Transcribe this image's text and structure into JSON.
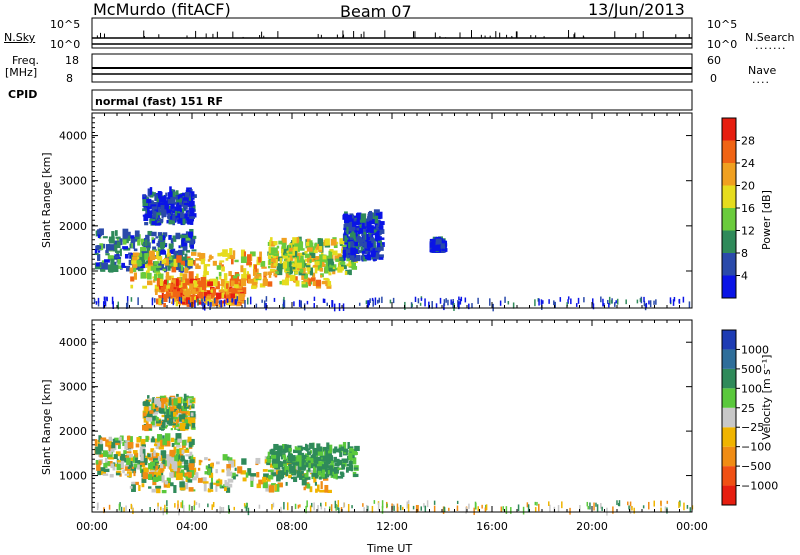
{
  "header": {
    "station": "McMurdo (fitACF)",
    "beam": "Beam 07",
    "date": "13/Jun/2013"
  },
  "strips": {
    "nsky": {
      "label": "N.Sky",
      "tick_top": "10^5",
      "tick_bottom": "10^0"
    },
    "nsearch": {
      "label": "N.Search",
      "tick_top": "10^5",
      "tick_bottom": "10^0"
    },
    "freq": {
      "label_line1": "Freq.",
      "label_line2": "[MHz]",
      "tick_top": "18",
      "tick_bottom": "8"
    },
    "nave": {
      "label": "Nave",
      "tick_top": "60",
      "tick_bottom": "0"
    },
    "cpid": {
      "label": "CPID",
      "text": "normal (fast) 151 RF"
    }
  },
  "chart_data": [
    {
      "type": "heatmap",
      "name": "power",
      "ylabel": "Slant Range [km]",
      "xlabel": "",
      "ylim": [
        180,
        4500
      ],
      "yticks": [
        "1000",
        "2000",
        "3000",
        "4000"
      ],
      "xlim_hours": [
        0,
        24
      ],
      "colorbar": {
        "label": "Power [dB]",
        "ticks": [
          "4",
          "8",
          "12",
          "16",
          "20",
          "24",
          "28"
        ],
        "range": [
          0,
          30
        ],
        "colors": [
          "#0a14e6",
          "#2a4aaa",
          "#2f8a5a",
          "#6acb3c",
          "#e6dc1e",
          "#f0a020",
          "#f06414",
          "#e61e10"
        ]
      },
      "regions": [
        {
          "t0": 0.1,
          "t1": 4.0,
          "r0": 950,
          "r1": 1800,
          "level": 10
        },
        {
          "t0": 1.5,
          "t1": 9.5,
          "r0": 600,
          "r1": 1350,
          "level": 22
        },
        {
          "t0": 2.5,
          "t1": 6.0,
          "r0": 200,
          "r1": 700,
          "level": 26
        },
        {
          "t0": 2.0,
          "t1": 4.0,
          "r0": 2000,
          "r1": 2700,
          "level": 5
        },
        {
          "t0": 7.0,
          "t1": 10.5,
          "r0": 900,
          "r1": 1600,
          "level": 16
        },
        {
          "t0": 10.0,
          "t1": 11.5,
          "r0": 1200,
          "r1": 2200,
          "level": 5
        },
        {
          "t0": 13.5,
          "t1": 14.0,
          "r0": 1400,
          "r1": 1600,
          "level": 5
        }
      ]
    },
    {
      "type": "heatmap",
      "name": "velocity",
      "ylabel": "Slant Range [km]",
      "xlabel": "Time UT",
      "ylim": [
        180,
        4500
      ],
      "yticks": [
        "1000",
        "2000",
        "3000",
        "4000"
      ],
      "xticks": [
        "00:00",
        "04:00",
        "08:00",
        "12:00",
        "16:00",
        "20:00",
        "00:00"
      ],
      "colorbar": {
        "label": "Velocity [m s⁻¹]",
        "ticks": [
          "1000",
          "500",
          "100",
          "25",
          "−25",
          "−100",
          "−500",
          "−1000"
        ],
        "colors": [
          "#1e3cb4",
          "#2f6e9a",
          "#2f8a5a",
          "#5ac83c",
          "#c8c8c8",
          "#f0b400",
          "#f08c14",
          "#f05014",
          "#e61e10"
        ]
      },
      "regions": [
        {
          "t0": 0.1,
          "t1": 4.0,
          "r0": 950,
          "r1": 1800,
          "level": "mixed"
        },
        {
          "t0": 1.5,
          "t1": 9.5,
          "r0": 600,
          "r1": 1350,
          "level": "mixed"
        },
        {
          "t0": 2.0,
          "t1": 4.0,
          "r0": 2000,
          "r1": 2700,
          "level": "mixed"
        },
        {
          "t0": 7.0,
          "t1": 10.5,
          "r0": 900,
          "r1": 1600,
          "level": "green"
        }
      ]
    }
  ]
}
